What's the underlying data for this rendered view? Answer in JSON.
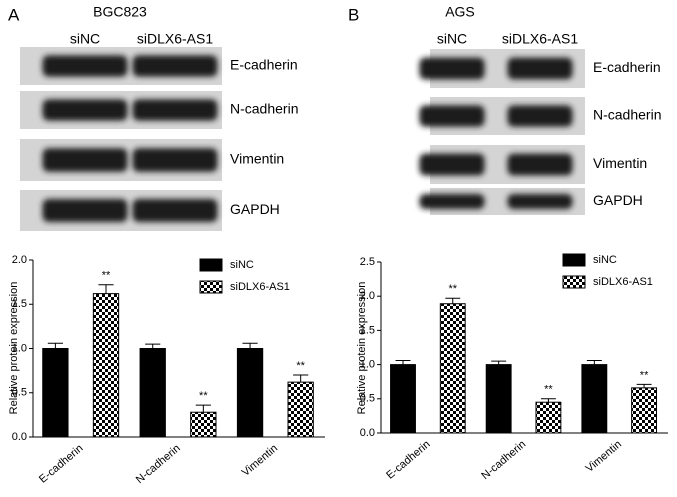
{
  "chart_data": [
    {
      "type": "bar",
      "panel": "A",
      "title": "BGC823",
      "blot": {
        "lanes": [
          "siNC",
          "siDLX6-AS1"
        ],
        "proteins": [
          "E-cadherin",
          "N-cadherin",
          "Vimentin",
          "GAPDH"
        ]
      },
      "ylabel": "Relative protein expression",
      "categories": [
        "E-cadherin",
        "N-cadherin",
        "Vimentin"
      ],
      "series": [
        {
          "name": "siNC",
          "color": "#000000",
          "fill": "solid",
          "values": [
            1.0,
            1.0,
            1.0
          ],
          "errors": [
            0.06,
            0.05,
            0.06
          ]
        },
        {
          "name": "siDLX6-AS1",
          "color": "#000000",
          "fill": "checker",
          "values": [
            1.62,
            0.28,
            0.62
          ],
          "errors": [
            0.1,
            0.08,
            0.08
          ],
          "annotations": [
            "**",
            "**",
            "**"
          ]
        }
      ],
      "ylim": [
        0,
        2
      ],
      "yticks": [
        {
          "value": 0,
          "label": "0.0"
        },
        {
          "value": 0.5,
          "label": "0.5"
        },
        {
          "value": 1,
          "label": "1.0"
        },
        {
          "value": 1.5,
          "label": "1.5"
        },
        {
          "value": 2,
          "label": "2.0"
        }
      ],
      "legend": "upper right"
    },
    {
      "type": "bar",
      "panel": "B",
      "title": "AGS",
      "blot": {
        "lanes": [
          "siNC",
          "siDLX6-AS1"
        ],
        "proteins": [
          "E-cadherin",
          "N-cadherin",
          "Vimentin",
          "GAPDH"
        ]
      },
      "ylabel": "Relative protein expression",
      "categories": [
        "E-cadherin",
        "N-cadherin",
        "Vimentin"
      ],
      "series": [
        {
          "name": "siNC",
          "color": "#000000",
          "fill": "solid",
          "values": [
            1.0,
            1.0,
            1.0
          ],
          "errors": [
            0.06,
            0.05,
            0.06
          ]
        },
        {
          "name": "siDLX6-AS1",
          "color": "#000000",
          "fill": "checker",
          "values": [
            1.89,
            0.45,
            0.66
          ],
          "errors": [
            0.08,
            0.05,
            0.05
          ],
          "annotations": [
            "**",
            "**",
            "**"
          ]
        }
      ],
      "ylim": [
        0,
        2.5
      ],
      "yticks": [
        {
          "value": 0,
          "label": "0.0"
        },
        {
          "value": 0.5,
          "label": "0.5"
        },
        {
          "value": 1,
          "label": "1.0"
        },
        {
          "value": 1.5,
          "label": "1.5"
        },
        {
          "value": 2,
          "label": "2.0"
        },
        {
          "value": 2.5,
          "label": "2.5"
        }
      ],
      "legend": "upper right"
    }
  ]
}
